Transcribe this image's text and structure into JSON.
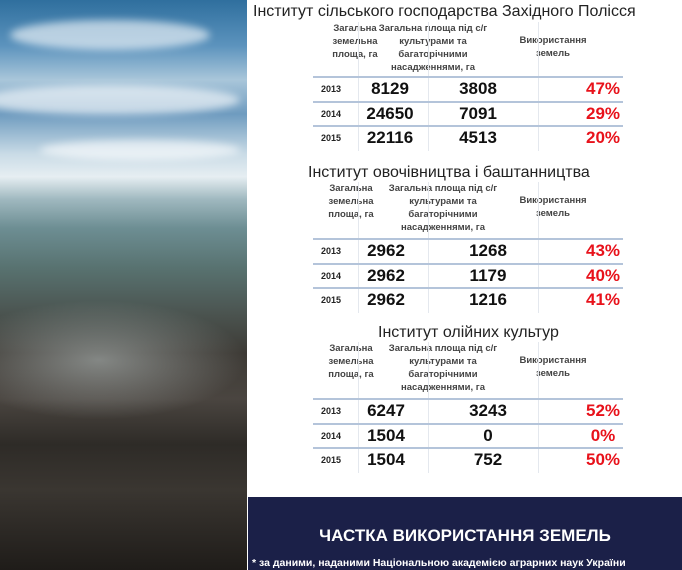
{
  "tables": [
    {
      "title": "Інститут сільського господарства Західного Полісся",
      "headers": [
        "Загальна земельна площа, га",
        "Загальна площа під с/г культурами та багаторічними насадженнями, га",
        "Використання земель"
      ],
      "rows": [
        {
          "year": "2013",
          "total": "8129",
          "crops": "3808",
          "usage": "47%"
        },
        {
          "year": "2014",
          "total": "24650",
          "crops": "7091",
          "usage": "29%"
        },
        {
          "year": "2015",
          "total": "22116",
          "crops": "4513",
          "usage": "20%"
        }
      ]
    },
    {
      "title": "Інститут овочівництва і баштанництва",
      "headers": [
        "Загальна земельна площа, га",
        "Загальна площа під с/г культурами та багаторічними насадженнями, га",
        "Використання земель"
      ],
      "rows": [
        {
          "year": "2013",
          "total": "2962",
          "crops": "1268",
          "usage": "43%"
        },
        {
          "year": "2014",
          "total": "2962",
          "crops": "1179",
          "usage": "40%"
        },
        {
          "year": "2015",
          "total": "2962",
          "crops": "1216",
          "usage": "41%"
        }
      ]
    },
    {
      "title": "Інститут олійних культур",
      "headers": [
        "Загальна земельна площа, га",
        "Загальна площа під с/г культурами та багаторічними насадженнями, га",
        "Використання земель"
      ],
      "rows": [
        {
          "year": "2013",
          "total": "6247",
          "crops": "3243",
          "usage": "52%"
        },
        {
          "year": "2014",
          "total": "1504",
          "crops": "0",
          "usage": "0%"
        },
        {
          "year": "2015",
          "total": "1504",
          "crops": "752",
          "usage": "50%"
        }
      ]
    }
  ],
  "footer": {
    "title": "ЧАСТКА ВИКОРИСТАННЯ ЗЕМЕЛЬ",
    "note": "* за даними, наданими Національною академією аграрних наук України"
  },
  "colors": {
    "accent": "#e8121b",
    "footer_bg": "#1b2048"
  }
}
